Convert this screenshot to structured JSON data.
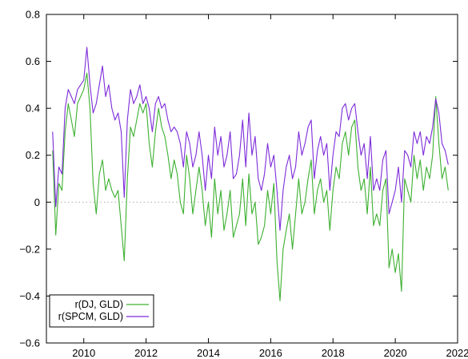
{
  "chart_data": {
    "type": "line",
    "title": "",
    "xlabel": "",
    "ylabel": "",
    "xlim": [
      2008.8,
      2022
    ],
    "ylim": [
      -0.6,
      0.8
    ],
    "x_ticks": [
      2010,
      2012,
      2014,
      2016,
      2018,
      2020,
      2022
    ],
    "y_ticks": [
      -0.6,
      -0.4,
      -0.2,
      0,
      0.2,
      0.4,
      0.6,
      0.8
    ],
    "x_tick_labels": [
      "2010",
      "2012",
      "2014",
      "2016",
      "2018",
      "2020",
      "2022"
    ],
    "y_tick_labels": [
      "−0.6",
      "−0.4",
      "−0.2",
      "0",
      "0.2",
      "0.4",
      "0.6",
      "0.8"
    ],
    "reference_line": {
      "y": 0,
      "style": "dotted",
      "color": "#aaaaaa"
    },
    "grid": false,
    "legend_position": "bottom-left",
    "series": [
      {
        "name": "r(DJ, GLD)",
        "color": "#3cb030",
        "x": [
          2009.0,
          2009.1,
          2009.2,
          2009.3,
          2009.4,
          2009.5,
          2009.6,
          2009.7,
          2009.8,
          2009.9,
          2010.0,
          2010.1,
          2010.2,
          2010.3,
          2010.4,
          2010.5,
          2010.6,
          2010.7,
          2010.8,
          2010.9,
          2011.0,
          2011.1,
          2011.2,
          2011.3,
          2011.4,
          2011.5,
          2011.6,
          2011.7,
          2011.8,
          2011.9,
          2012.0,
          2012.1,
          2012.2,
          2012.3,
          2012.4,
          2012.5,
          2012.6,
          2012.7,
          2012.8,
          2012.9,
          2013.0,
          2013.1,
          2013.2,
          2013.3,
          2013.4,
          2013.5,
          2013.6,
          2013.7,
          2013.8,
          2013.9,
          2014.0,
          2014.1,
          2014.2,
          2014.3,
          2014.4,
          2014.5,
          2014.6,
          2014.7,
          2014.8,
          2014.9,
          2015.0,
          2015.1,
          2015.2,
          2015.3,
          2015.4,
          2015.5,
          2015.6,
          2015.7,
          2015.8,
          2015.9,
          2016.0,
          2016.1,
          2016.2,
          2016.3,
          2016.4,
          2016.5,
          2016.6,
          2016.7,
          2016.8,
          2016.9,
          2017.0,
          2017.1,
          2017.2,
          2017.3,
          2017.4,
          2017.5,
          2017.6,
          2017.7,
          2017.8,
          2017.9,
          2018.0,
          2018.1,
          2018.2,
          2018.3,
          2018.4,
          2018.5,
          2018.6,
          2018.7,
          2018.8,
          2018.9,
          2019.0,
          2019.1,
          2019.2,
          2019.3,
          2019.4,
          2019.5,
          2019.6,
          2019.7,
          2019.8,
          2019.9,
          2020.0,
          2020.1,
          2020.2,
          2020.3,
          2020.4,
          2020.5,
          2020.6,
          2020.7,
          2020.8,
          2020.9,
          2021.0,
          2021.1,
          2021.2,
          2021.3,
          2021.4,
          2021.5,
          2021.6,
          2021.7
        ],
        "y": [
          0.22,
          -0.14,
          0.08,
          0.05,
          0.3,
          0.42,
          0.35,
          0.28,
          0.42,
          0.45,
          0.48,
          0.55,
          0.4,
          0.08,
          -0.05,
          0.12,
          0.18,
          0.05,
          0.1,
          0.05,
          0.02,
          0.05,
          -0.1,
          -0.25,
          0.1,
          0.32,
          0.28,
          0.35,
          0.42,
          0.38,
          0.42,
          0.25,
          0.15,
          0.3,
          0.4,
          0.32,
          0.28,
          0.2,
          0.1,
          0.18,
          0.12,
          0.0,
          -0.05,
          0.2,
          0.1,
          -0.05,
          0.05,
          0.15,
          0.05,
          -0.1,
          0.0,
          -0.15,
          0.1,
          -0.05,
          0.05,
          -0.12,
          -0.05,
          0.05,
          -0.15,
          -0.1,
          -0.05,
          0.1,
          -0.1,
          0.12,
          -0.05,
          0.0,
          -0.18,
          -0.15,
          -0.1,
          0.05,
          -0.05,
          0.08,
          -0.25,
          -0.42,
          -0.2,
          -0.12,
          -0.05,
          -0.2,
          -0.05,
          0.1,
          -0.05,
          0.0,
          0.1,
          0.18,
          -0.05,
          0.05,
          0.1,
          0.0,
          0.05,
          -0.12,
          0.05,
          0.15,
          0.1,
          0.25,
          0.3,
          0.2,
          0.32,
          0.35,
          0.15,
          0.05,
          0.1,
          -0.05,
          0.15,
          -0.1,
          -0.05,
          -0.1,
          0.05,
          0.1,
          -0.28,
          -0.2,
          -0.3,
          -0.22,
          -0.38,
          0.1,
          0.05,
          0.0,
          0.2,
          0.1,
          0.18,
          0.05,
          0.15,
          0.1,
          0.2,
          0.45,
          0.25,
          0.1,
          0.15,
          0.05
        ]
      },
      {
        "name": "r(SPCM, GLD)",
        "color": "#7d2bd9",
        "x": [
          2009.0,
          2009.1,
          2009.2,
          2009.3,
          2009.4,
          2009.5,
          2009.6,
          2009.7,
          2009.8,
          2009.9,
          2010.0,
          2010.1,
          2010.2,
          2010.3,
          2010.4,
          2010.5,
          2010.6,
          2010.7,
          2010.8,
          2010.9,
          2011.0,
          2011.1,
          2011.2,
          2011.3,
          2011.4,
          2011.5,
          2011.6,
          2011.7,
          2011.8,
          2011.9,
          2012.0,
          2012.1,
          2012.2,
          2012.3,
          2012.4,
          2012.5,
          2012.6,
          2012.7,
          2012.8,
          2012.9,
          2013.0,
          2013.1,
          2013.2,
          2013.3,
          2013.4,
          2013.5,
          2013.6,
          2013.7,
          2013.8,
          2013.9,
          2014.0,
          2014.1,
          2014.2,
          2014.3,
          2014.4,
          2014.5,
          2014.6,
          2014.7,
          2014.8,
          2014.9,
          2015.0,
          2015.1,
          2015.2,
          2015.3,
          2015.4,
          2015.5,
          2015.6,
          2015.7,
          2015.8,
          2015.9,
          2016.0,
          2016.1,
          2016.2,
          2016.3,
          2016.4,
          2016.5,
          2016.6,
          2016.7,
          2016.8,
          2016.9,
          2017.0,
          2017.1,
          2017.2,
          2017.3,
          2017.4,
          2017.5,
          2017.6,
          2017.7,
          2017.8,
          2017.9,
          2018.0,
          2018.1,
          2018.2,
          2018.3,
          2018.4,
          2018.5,
          2018.6,
          2018.7,
          2018.8,
          2018.9,
          2019.0,
          2019.1,
          2019.2,
          2019.3,
          2019.4,
          2019.5,
          2019.6,
          2019.7,
          2019.8,
          2019.9,
          2020.0,
          2020.1,
          2020.2,
          2020.3,
          2020.4,
          2020.5,
          2020.6,
          2020.7,
          2020.8,
          2020.9,
          2021.0,
          2021.1,
          2021.2,
          2021.3,
          2021.4,
          2021.5,
          2021.6,
          2021.7
        ],
        "y": [
          0.3,
          -0.02,
          0.15,
          0.12,
          0.4,
          0.48,
          0.45,
          0.42,
          0.48,
          0.5,
          0.52,
          0.66,
          0.5,
          0.38,
          0.42,
          0.5,
          0.58,
          0.45,
          0.5,
          0.4,
          0.35,
          0.38,
          0.3,
          0.02,
          0.35,
          0.48,
          0.42,
          0.45,
          0.5,
          0.42,
          0.45,
          0.4,
          0.3,
          0.42,
          0.45,
          0.4,
          0.42,
          0.35,
          0.3,
          0.32,
          0.3,
          0.25,
          0.15,
          0.3,
          0.25,
          0.15,
          0.2,
          0.3,
          0.2,
          0.05,
          0.2,
          0.1,
          0.32,
          0.2,
          0.28,
          0.15,
          0.2,
          0.3,
          0.1,
          0.12,
          0.2,
          0.35,
          0.15,
          0.38,
          0.2,
          0.28,
          0.1,
          0.05,
          0.12,
          0.25,
          0.15,
          0.2,
          0.05,
          -0.12,
          0.05,
          0.15,
          0.2,
          0.1,
          0.15,
          0.3,
          0.2,
          0.25,
          0.32,
          0.35,
          0.1,
          0.22,
          0.28,
          0.2,
          0.25,
          0.05,
          0.2,
          0.3,
          0.28,
          0.4,
          0.42,
          0.35,
          0.4,
          0.42,
          0.3,
          0.2,
          0.25,
          0.1,
          0.28,
          0.05,
          0.1,
          0.05,
          0.18,
          0.22,
          -0.05,
          0.0,
          0.05,
          0.15,
          0.0,
          0.22,
          0.2,
          0.15,
          0.3,
          0.25,
          0.3,
          0.2,
          0.28,
          0.25,
          0.32,
          0.44,
          0.38,
          0.25,
          0.22,
          0.16
        ]
      }
    ]
  }
}
